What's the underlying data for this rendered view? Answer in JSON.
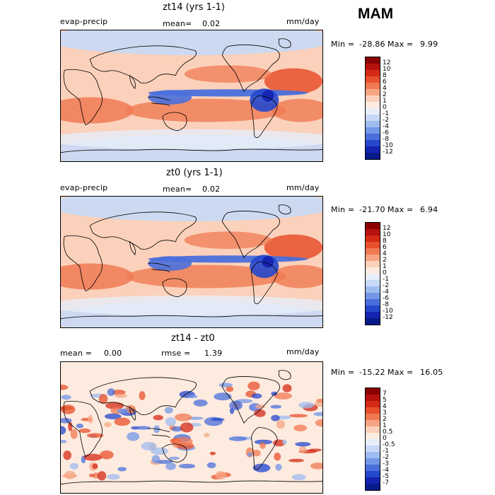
{
  "season": "MAM",
  "panels": [
    {
      "id": "top",
      "title": "zt14 (yrs 1-1)",
      "left_label": "evap-precip",
      "center_label": "mean=",
      "center_value": "0.02",
      "units": "mm/day",
      "stats": {
        "min_label": "Min =",
        "min": "-28.86",
        "max_label": "Max =",
        "max": "9.99"
      },
      "levels": [
        "12",
        "10",
        "8",
        "6",
        "4",
        "2",
        "1",
        "0",
        "-1",
        "-2",
        "-4",
        "-6",
        "-8",
        "-10",
        "-12"
      ],
      "colors": [
        "#8b0000",
        "#b5120e",
        "#d42a16",
        "#e8502c",
        "#f07a53",
        "#f6a583",
        "#fbd1bb",
        "#fdebdf",
        "#e7eefa",
        "#c7d9f6",
        "#9fbcf0",
        "#7397e6",
        "#4a6fdc",
        "#2547cc",
        "#1423b0",
        "#081a8a"
      ]
    },
    {
      "id": "middle",
      "title": "zt0 (yrs 1-1)",
      "left_label": "evap-precip",
      "center_label": "mean=",
      "center_value": "0.02",
      "units": "mm/day",
      "stats": {
        "min_label": "Min =",
        "min": "-21.70",
        "max_label": "Max =",
        "max": "6.94"
      },
      "levels": [
        "12",
        "10",
        "8",
        "6",
        "4",
        "2",
        "1",
        "0",
        "-1",
        "-2",
        "-4",
        "-6",
        "-8",
        "-10",
        "-12"
      ],
      "colors": [
        "#8b0000",
        "#b5120e",
        "#d42a16",
        "#e8502c",
        "#f07a53",
        "#f6a583",
        "#fbd1bb",
        "#fdebdf",
        "#e7eefa",
        "#c7d9f6",
        "#9fbcf0",
        "#7397e6",
        "#4a6fdc",
        "#2547cc",
        "#1423b0",
        "#081a8a"
      ]
    },
    {
      "id": "bottom",
      "title": "zt14 - zt0",
      "left_label": "mean =",
      "left_value": "0.00",
      "center_label": "rmse =",
      "center_value": "1.39",
      "units": "mm/day",
      "stats": {
        "min_label": "Min =",
        "min": "-15.22",
        "max_label": "Max =",
        "max": "16.05"
      },
      "levels": [
        "7",
        "5",
        "4",
        "3",
        "2",
        "1",
        "0.5",
        "0",
        "-0.5",
        "-1",
        "-2",
        "-3",
        "-4",
        "-5",
        "-7"
      ],
      "colors": [
        "#8b0000",
        "#b5120e",
        "#d42a16",
        "#e8502c",
        "#f07a53",
        "#f6a583",
        "#fbd1bb",
        "#fdebdf",
        "#e7eefa",
        "#c7d9f6",
        "#9fbcf0",
        "#7397e6",
        "#4a6fdc",
        "#2547cc",
        "#1423b0",
        "#081a8a"
      ]
    }
  ]
}
